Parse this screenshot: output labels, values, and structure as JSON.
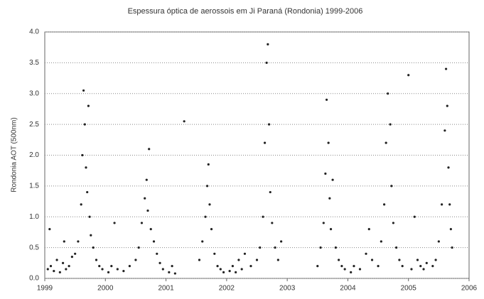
{
  "chart_data": {
    "type": "scatter",
    "title": "Espessura óptica de aerossois em Ji Paraná (Rondonia) 1999-2006",
    "y_label": "Rondonia AOT (500nm)",
    "color": "#222222",
    "xlim": [
      1999,
      2006
    ],
    "xticks": [
      1999,
      2000,
      2001,
      2002,
      2003,
      2004,
      2005,
      2006
    ],
    "ylim": [
      0,
      4
    ],
    "yticks": [
      {
        "value": 0,
        "label": "0.0"
      },
      {
        "value": 0.5,
        "label": "0.5"
      },
      {
        "value": 1,
        "label": "1.0"
      },
      {
        "value": 1.5,
        "label": "1.5"
      },
      {
        "value": 2,
        "label": "2.0"
      },
      {
        "value": 2.5,
        "label": "2.5"
      },
      {
        "value": 3,
        "label": "3.0"
      },
      {
        "value": 3.5,
        "label": "3.5"
      },
      {
        "value": 4,
        "label": "4.0"
      }
    ],
    "grid": true,
    "x": [
      1999.05,
      1999.08,
      1999.1,
      1999.15,
      1999.2,
      1999.25,
      1999.3,
      1999.32,
      1999.35,
      1999.4,
      1999.45,
      1999.5,
      1999.55,
      1999.6,
      1999.62,
      1999.64,
      1999.66,
      1999.68,
      1999.7,
      1999.72,
      1999.74,
      1999.76,
      1999.8,
      1999.85,
      1999.9,
      1999.95,
      2000.05,
      2000.1,
      2000.15,
      2000.2,
      2000.3,
      2000.4,
      2000.5,
      2000.55,
      2000.6,
      2000.65,
      2000.68,
      2000.7,
      2000.72,
      2000.75,
      2000.8,
      2000.85,
      2000.9,
      2000.95,
      2001.05,
      2001.1,
      2001.15,
      2001.3,
      2001.55,
      2001.6,
      2001.65,
      2001.68,
      2001.7,
      2001.72,
      2001.75,
      2001.8,
      2001.85,
      2001.9,
      2001.95,
      2002.05,
      2002.1,
      2002.15,
      2002.2,
      2002.25,
      2002.3,
      2002.4,
      2002.5,
      2002.55,
      2002.6,
      2002.63,
      2002.66,
      2002.68,
      2002.7,
      2002.72,
      2002.75,
      2002.8,
      2002.85,
      2002.9,
      2003.5,
      2003.55,
      2003.6,
      2003.63,
      2003.65,
      2003.68,
      2003.7,
      2003.72,
      2003.75,
      2003.8,
      2003.85,
      2003.9,
      2003.95,
      2004.05,
      2004.1,
      2004.2,
      2004.3,
      2004.35,
      2004.4,
      2004.5,
      2004.55,
      2004.6,
      2004.63,
      2004.66,
      2004.7,
      2004.72,
      2004.75,
      2004.8,
      2004.85,
      2004.9,
      2005.0,
      2005.05,
      2005.1,
      2005.15,
      2005.2,
      2005.25,
      2005.3,
      2005.4,
      2005.45,
      2005.5,
      2005.55,
      2005.6,
      2005.62,
      2005.64,
      2005.66,
      2005.68,
      2005.7,
      2005.72
    ],
    "values": [
      0.15,
      0.8,
      0.2,
      0.12,
      0.3,
      0.1,
      0.25,
      0.6,
      0.15,
      0.2,
      0.35,
      0.4,
      0.6,
      1.2,
      2.0,
      3.05,
      2.5,
      1.8,
      1.4,
      2.8,
      1.0,
      0.7,
      0.5,
      0.3,
      0.2,
      0.15,
      0.1,
      0.2,
      0.9,
      0.15,
      0.12,
      0.2,
      0.3,
      0.5,
      0.9,
      1.3,
      1.6,
      1.1,
      2.1,
      0.8,
      0.6,
      0.4,
      0.25,
      0.15,
      0.1,
      0.2,
      0.08,
      2.55,
      0.3,
      0.6,
      1.0,
      1.5,
      1.85,
      1.2,
      0.8,
      0.4,
      0.2,
      0.15,
      0.1,
      0.12,
      0.2,
      0.1,
      0.3,
      0.15,
      0.4,
      0.2,
      0.3,
      0.5,
      1.0,
      2.2,
      3.5,
      3.8,
      2.5,
      1.4,
      0.9,
      0.5,
      0.3,
      0.6,
      0.2,
      0.5,
      0.9,
      1.7,
      2.9,
      2.2,
      1.3,
      0.8,
      1.6,
      0.5,
      0.3,
      0.2,
      0.15,
      0.1,
      0.2,
      0.15,
      0.4,
      0.8,
      0.3,
      0.2,
      0.6,
      1.2,
      2.2,
      3.0,
      2.5,
      1.5,
      0.9,
      0.5,
      0.3,
      0.2,
      3.3,
      0.15,
      1.0,
      0.3,
      0.2,
      0.15,
      0.25,
      0.2,
      0.3,
      0.6,
      1.2,
      2.4,
      3.4,
      2.8,
      1.8,
      1.2,
      0.8,
      0.5
    ]
  }
}
